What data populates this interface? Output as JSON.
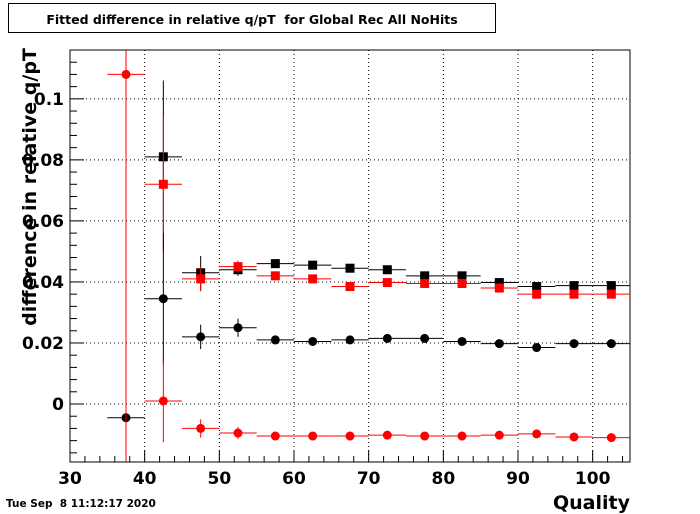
{
  "title": "Fitted difference in relative q/pT  for Global Rec All NoHits",
  "timestamp": "Tue Sep  8 11:12:17 2020",
  "colors": {
    "black": "#000000",
    "red": "#ff0000",
    "grid": "#000000"
  },
  "chart_data": {
    "type": "scatter",
    "title": "Fitted difference in relative q/pT  for Global Rec All NoHits",
    "xlabel": "Quality",
    "ylabel": "difference in relative q/pT",
    "xlim": [
      30,
      105
    ],
    "ylim": [
      -0.019,
      0.116
    ],
    "grid": true,
    "x_ticks": [
      30,
      40,
      50,
      60,
      70,
      80,
      90,
      100
    ],
    "x_tick_labels": [
      "30",
      "40",
      "50",
      "60",
      "70",
      "80",
      "90",
      "100"
    ],
    "y_ticks": [
      0,
      0.02,
      0.04,
      0.06,
      0.08,
      0.1
    ],
    "y_tick_labels": [
      "0",
      "0.02",
      "0.04",
      "0.06",
      "0.08",
      "0.1"
    ],
    "series": [
      {
        "marker": "square",
        "color": "#000000",
        "points": [
          {
            "x": 42.5,
            "y": 0.081,
            "ylo": 0.056,
            "yhi": 0.106
          },
          {
            "x": 47.5,
            "y": 0.043,
            "ylo": 0.037,
            "yhi": 0.0485
          },
          {
            "x": 52.5,
            "y": 0.044,
            "ylo": 0.042,
            "yhi": 0.046
          },
          {
            "x": 57.5,
            "y": 0.046,
            "ylo": 0.045,
            "yhi": 0.047
          },
          {
            "x": 62.5,
            "y": 0.0455,
            "ylo": 0.0448,
            "yhi": 0.0462
          },
          {
            "x": 67.5,
            "y": 0.0445,
            "ylo": 0.0438,
            "yhi": 0.0452
          },
          {
            "x": 72.5,
            "y": 0.044,
            "ylo": 0.0433,
            "yhi": 0.0447
          },
          {
            "x": 77.5,
            "y": 0.042,
            "ylo": 0.0413,
            "yhi": 0.0427
          },
          {
            "x": 82.5,
            "y": 0.042,
            "ylo": 0.0413,
            "yhi": 0.0427
          },
          {
            "x": 87.5,
            "y": 0.0398,
            "ylo": 0.0391,
            "yhi": 0.0405
          },
          {
            "x": 92.5,
            "y": 0.0385,
            "ylo": 0.0378,
            "yhi": 0.0392
          },
          {
            "x": 97.5,
            "y": 0.0388,
            "ylo": 0.0381,
            "yhi": 0.0395
          },
          {
            "x": 102.5,
            "y": 0.0388,
            "ylo": 0.0381,
            "yhi": 0.0395
          }
        ]
      },
      {
        "marker": "square",
        "color": "#ff0000",
        "points": [
          {
            "x": 42.5,
            "y": 0.072,
            "ylo": 0.05,
            "yhi": 0.094
          },
          {
            "x": 47.5,
            "y": 0.041,
            "ylo": 0.037,
            "yhi": 0.045
          },
          {
            "x": 52.5,
            "y": 0.045,
            "ylo": 0.043,
            "yhi": 0.047
          },
          {
            "x": 57.5,
            "y": 0.042,
            "ylo": 0.041,
            "yhi": 0.043
          },
          {
            "x": 62.5,
            "y": 0.041,
            "ylo": 0.0402,
            "yhi": 0.0418
          },
          {
            "x": 67.5,
            "y": 0.0385,
            "ylo": 0.0378,
            "yhi": 0.0392
          },
          {
            "x": 72.5,
            "y": 0.0398,
            "ylo": 0.0391,
            "yhi": 0.0405
          },
          {
            "x": 77.5,
            "y": 0.0395,
            "ylo": 0.0388,
            "yhi": 0.0402
          },
          {
            "x": 82.5,
            "y": 0.0395,
            "ylo": 0.0388,
            "yhi": 0.0402
          },
          {
            "x": 87.5,
            "y": 0.038,
            "ylo": 0.0373,
            "yhi": 0.0387
          },
          {
            "x": 92.5,
            "y": 0.036,
            "ylo": 0.0353,
            "yhi": 0.0367
          },
          {
            "x": 97.5,
            "y": 0.036,
            "ylo": 0.0353,
            "yhi": 0.0367
          },
          {
            "x": 102.5,
            "y": 0.036,
            "ylo": 0.0353,
            "yhi": 0.0367
          }
        ]
      },
      {
        "marker": "circle",
        "color": "#000000",
        "points": [
          {
            "x": 37.5,
            "y": -0.0045,
            "ylo": -0.0052,
            "yhi": -0.0038
          },
          {
            "x": 42.5,
            "y": 0.0345,
            "ylo": 0.013,
            "yhi": 0.056
          },
          {
            "x": 47.5,
            "y": 0.022,
            "ylo": 0.018,
            "yhi": 0.026
          },
          {
            "x": 52.5,
            "y": 0.025,
            "ylo": 0.022,
            "yhi": 0.028
          },
          {
            "x": 57.5,
            "y": 0.021,
            "ylo": 0.0195,
            "yhi": 0.0225
          },
          {
            "x": 62.5,
            "y": 0.0205,
            "ylo": 0.0195,
            "yhi": 0.0215
          },
          {
            "x": 67.5,
            "y": 0.021,
            "ylo": 0.02,
            "yhi": 0.022
          },
          {
            "x": 72.5,
            "y": 0.0215,
            "ylo": 0.0205,
            "yhi": 0.0225
          },
          {
            "x": 77.5,
            "y": 0.0215,
            "ylo": 0.0205,
            "yhi": 0.0225
          },
          {
            "x": 82.5,
            "y": 0.0205,
            "ylo": 0.0198,
            "yhi": 0.0212
          },
          {
            "x": 87.5,
            "y": 0.0198,
            "ylo": 0.0191,
            "yhi": 0.0205
          },
          {
            "x": 92.5,
            "y": 0.0185,
            "ylo": 0.0178,
            "yhi": 0.0192
          },
          {
            "x": 97.5,
            "y": 0.0198,
            "ylo": 0.0191,
            "yhi": 0.0205
          },
          {
            "x": 102.5,
            "y": 0.0198,
            "ylo": 0.0191,
            "yhi": 0.0205
          }
        ]
      },
      {
        "marker": "circle",
        "color": "#ff0000",
        "points": [
          {
            "x": 37.5,
            "y": 0.108,
            "ylo": -0.019,
            "yhi": 0.116
          },
          {
            "x": 42.5,
            "y": 0.001,
            "ylo": -0.0125,
            "yhi": 0.0145
          },
          {
            "x": 47.5,
            "y": -0.008,
            "ylo": -0.011,
            "yhi": -0.005
          },
          {
            "x": 52.5,
            "y": -0.0095,
            "ylo": -0.0115,
            "yhi": -0.0075
          },
          {
            "x": 57.5,
            "y": -0.0105,
            "ylo": -0.0115,
            "yhi": -0.0095
          },
          {
            "x": 62.5,
            "y": -0.0105,
            "ylo": -0.0113,
            "yhi": -0.0097
          },
          {
            "x": 67.5,
            "y": -0.0105,
            "ylo": -0.0113,
            "yhi": -0.0097
          },
          {
            "x": 72.5,
            "y": -0.0102,
            "ylo": -0.011,
            "yhi": -0.0094
          },
          {
            "x": 77.5,
            "y": -0.0105,
            "ylo": -0.0113,
            "yhi": -0.0097
          },
          {
            "x": 82.5,
            "y": -0.0105,
            "ylo": -0.0113,
            "yhi": -0.0097
          },
          {
            "x": 87.5,
            "y": -0.0102,
            "ylo": -0.011,
            "yhi": -0.0094
          },
          {
            "x": 92.5,
            "y": -0.0098,
            "ylo": -0.0106,
            "yhi": -0.009
          },
          {
            "x": 97.5,
            "y": -0.0108,
            "ylo": -0.0116,
            "yhi": -0.01
          },
          {
            "x": 102.5,
            "y": -0.011,
            "ylo": -0.0118,
            "yhi": -0.0102
          }
        ]
      }
    ]
  }
}
